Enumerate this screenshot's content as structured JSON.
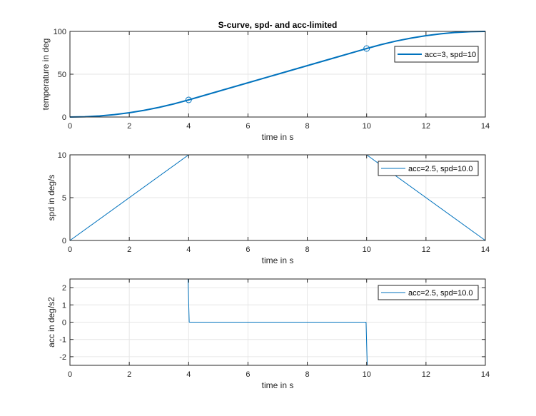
{
  "figure": {
    "title": "S-curve, spd- and acc-limited"
  },
  "colors": {
    "axes": "#262626",
    "grid": "#e6e6e6",
    "series": "#0072bd"
  },
  "chart_data": [
    {
      "type": "line",
      "title": "S-curve, spd- and acc-limited",
      "xlabel": "time in s",
      "ylabel": "temperature in deg",
      "xlim": [
        0,
        14
      ],
      "ylim": [
        0,
        100
      ],
      "xticks": [
        "0",
        "2",
        "4",
        "6",
        "8",
        "10",
        "12",
        "14"
      ],
      "yticks": [
        "0",
        "50",
        "100"
      ],
      "grid": true,
      "legend_location": "top-right",
      "series": [
        {
          "name": "acc=3, spd=10",
          "line_width": "thick",
          "x": [
            0,
            0.5,
            1,
            1.5,
            2,
            2.5,
            3,
            3.5,
            4,
            5,
            6,
            7,
            8,
            9,
            10,
            10.5,
            11,
            11.5,
            12,
            12.5,
            13,
            13.5,
            14
          ],
          "y": [
            0,
            0.31,
            1.25,
            2.81,
            5,
            7.81,
            11.25,
            15.31,
            20,
            30,
            40,
            50,
            60,
            70,
            80,
            84.7,
            88.8,
            92.2,
            95,
            97.2,
            98.8,
            99.7,
            100
          ]
        }
      ],
      "markers": [
        {
          "x": 4,
          "y": 20,
          "shape": "circle"
        },
        {
          "x": 10,
          "y": 80,
          "shape": "circle"
        }
      ]
    },
    {
      "type": "line",
      "title": "",
      "xlabel": "time in s",
      "ylabel": "spd in deg/s",
      "xlim": [
        0,
        14
      ],
      "ylim": [
        0,
        10
      ],
      "xticks": [
        "0",
        "2",
        "4",
        "6",
        "8",
        "10",
        "12",
        "14"
      ],
      "yticks": [
        "0",
        "5",
        "10"
      ],
      "grid": true,
      "legend_location": "top-right",
      "series": [
        {
          "name": "acc=2.5, spd=10.0",
          "line_width": "thin",
          "x": [
            0,
            4,
            10,
            14
          ],
          "y": [
            0,
            10,
            10,
            0
          ]
        }
      ]
    },
    {
      "type": "line",
      "title": "",
      "xlabel": "time in s",
      "ylabel": "acc in deg/s2",
      "xlim": [
        0,
        14
      ],
      "ylim": [
        -2.5,
        2.5
      ],
      "xticks": [
        "0",
        "2",
        "4",
        "6",
        "8",
        "10",
        "12",
        "14"
      ],
      "yticks": [
        "2",
        "1",
        "0",
        "-1",
        "-2"
      ],
      "ytick_values": [
        2,
        1,
        0,
        -1,
        -2
      ],
      "grid": true,
      "legend_location": "top-right",
      "series": [
        {
          "name": "acc=2.5, spd=10.0",
          "line_width": "thin",
          "x": [
            0,
            3.98,
            4.02,
            9.98,
            10.02,
            14
          ],
          "y": [
            2.5,
            2.5,
            0,
            0,
            -2.5,
            -2.5
          ]
        }
      ]
    }
  ]
}
